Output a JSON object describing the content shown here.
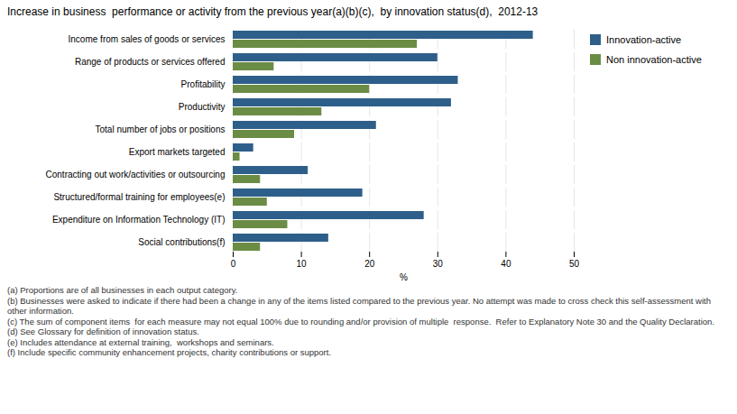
{
  "chart_data": {
    "type": "bar",
    "orientation": "horizontal",
    "title": "Increase in business  performance or activity from the previous year(a)(b)(c),  by innovation status(d),  2012-13",
    "categories": [
      "Income from sales of goods or services",
      "Range of products or services offered",
      "Profitability",
      "Productivity",
      "Total number of jobs or positions",
      "Export markets targeted",
      "Contracting out work/activities or outsourcing",
      "Structured/formal training for employees(e)",
      "Expenditure on Information Technology (IT)",
      "Social contributions(f)"
    ],
    "series": [
      {
        "name": "Innovation-active",
        "color": "#2E5F8A",
        "values": [
          44,
          30,
          33,
          32,
          21,
          3,
          11,
          19,
          28,
          14
        ]
      },
      {
        "name": "Non innovation-active",
        "color": "#6B8C45",
        "values": [
          27,
          6,
          20,
          13,
          9,
          1,
          4,
          5,
          8,
          4
        ]
      }
    ],
    "xlim": [
      0,
      50
    ],
    "xticks": [
      0,
      10,
      20,
      30,
      40,
      50
    ],
    "xlabel": "%",
    "grid": true,
    "legend": "right",
    "annotations": [
      "(a) Proportions are of all businesses in each output category.",
      "(b) Businesses were asked to indicate if there had been a change in any of the items listed compared to the previous year. No attempt was made to cross check this self-assessment with other information.",
      "(c) The sum of component items  for each measure may not equal 100% due to rounding and/or provision of multiple  response.  Refer to Explanatory Note 30 and the Quality Declaration.",
      "(d) See Glossary for definition of innovation status.",
      "(e) Includes attendance at external training,  workshops and seminars.",
      "(f) Include specific community enhancement projects, charity contributions or support."
    ]
  }
}
